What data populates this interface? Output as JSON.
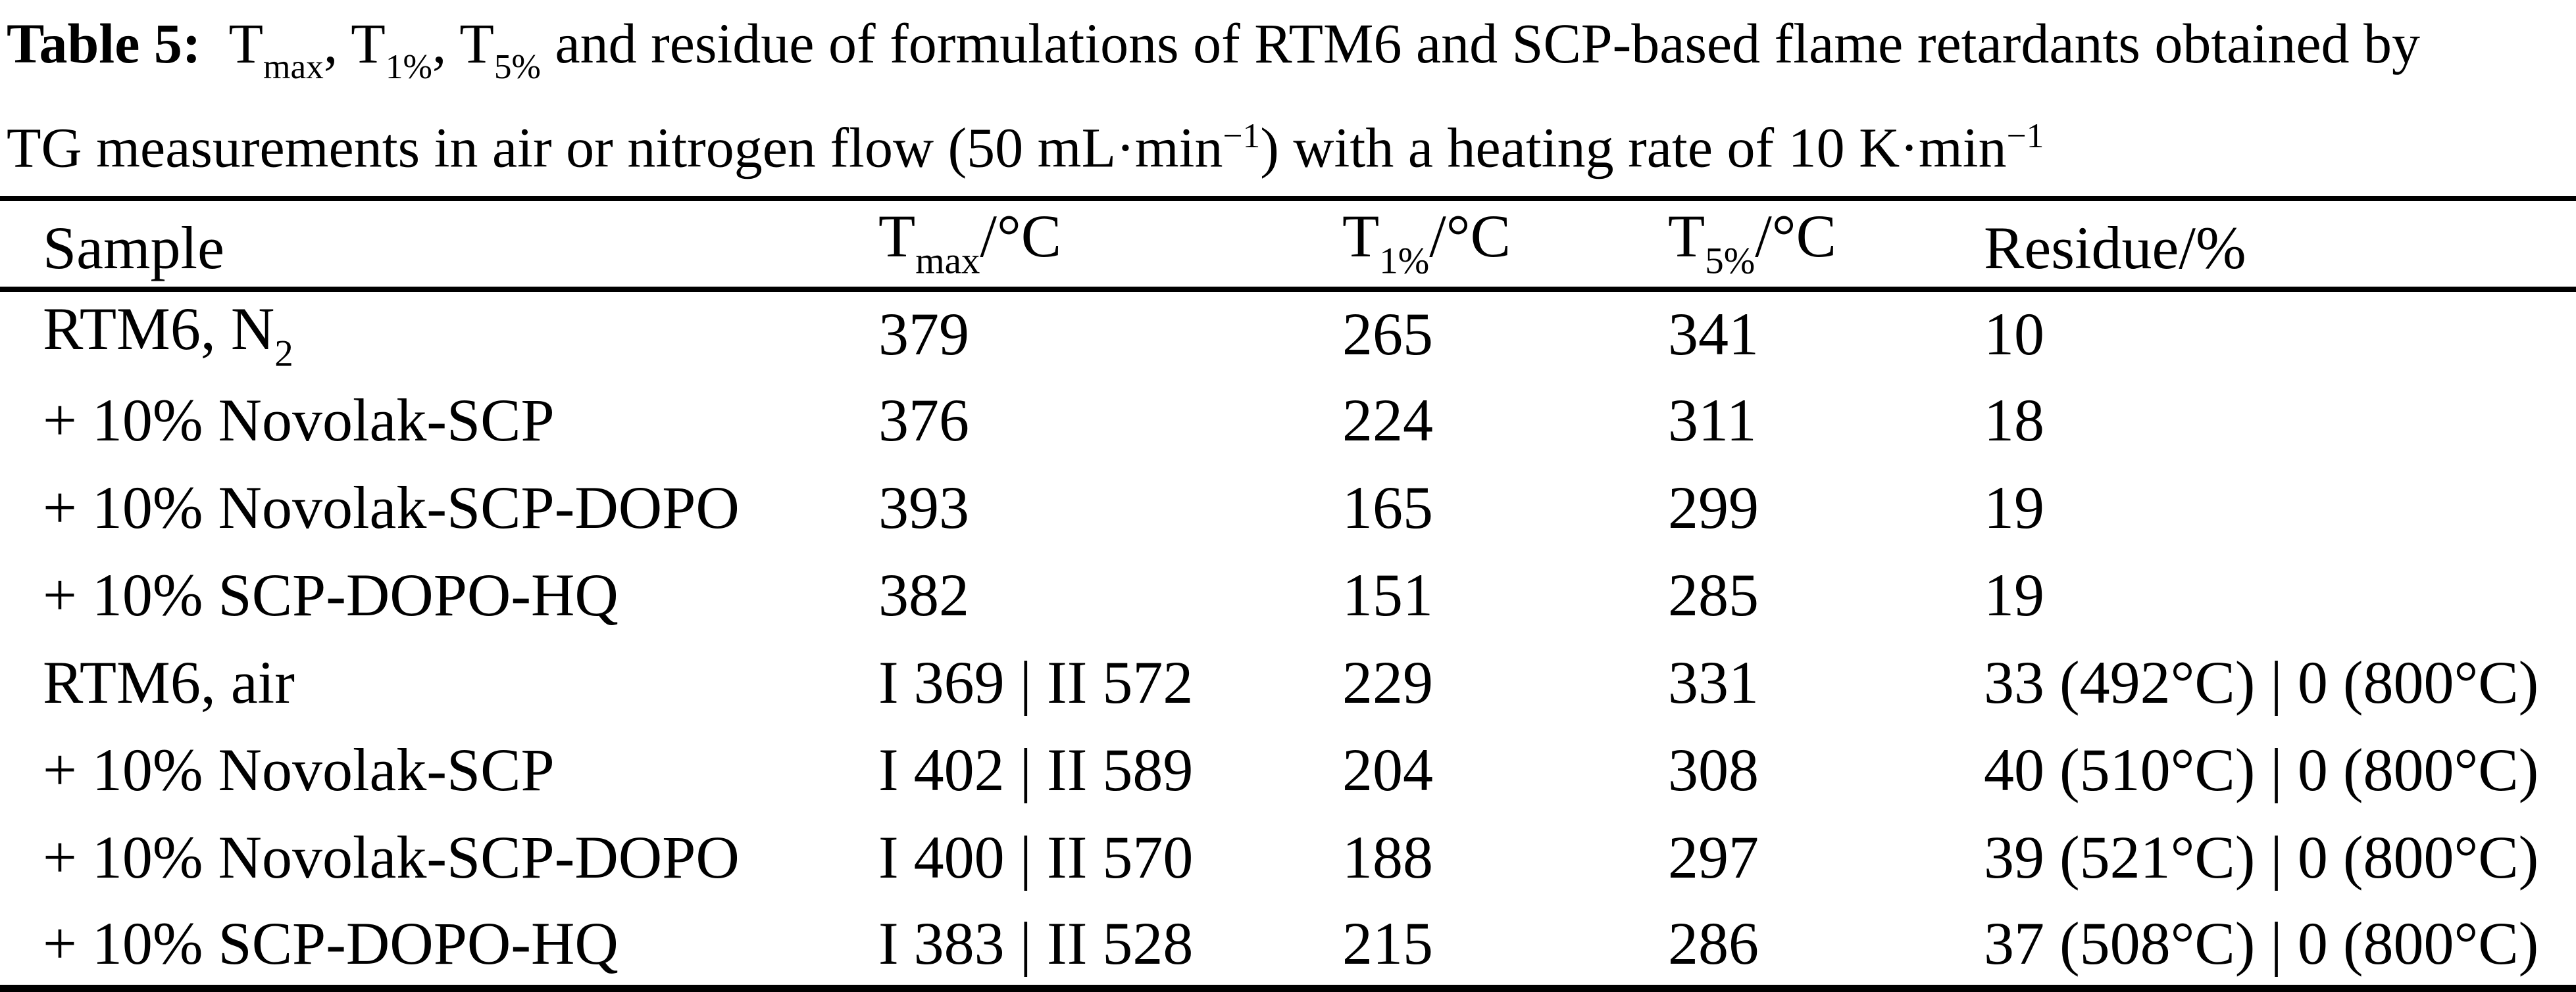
{
  "colors": {
    "text": "#000000",
    "background": "#ffffff",
    "rule": "#000000"
  },
  "caption": {
    "line1_segments": [
      {
        "t": "Table 5:",
        "b": true
      },
      {
        "t": "T"
      },
      {
        "t": "max",
        "sub": true
      },
      {
        "t": ", T"
      },
      {
        "t": "1%",
        "sub": true
      },
      {
        "t": ", T"
      },
      {
        "t": "5%",
        "sub": true
      },
      {
        "t": " and residue of formulations of RTM6 and SCP-based flame retardants obtained by"
      }
    ],
    "line2_segments": [
      {
        "t": "TG measurements in air or nitrogen flow (50 mL·min"
      },
      {
        "t": "−1",
        "sup": true
      },
      {
        "t": ") with a heating rate of 10 K·min"
      },
      {
        "t": "−1",
        "sup": true
      }
    ]
  },
  "table": {
    "columns": [
      {
        "id": "sample",
        "segments": [
          {
            "t": "Sample"
          }
        ]
      },
      {
        "id": "tmax",
        "segments": [
          {
            "t": "T"
          },
          {
            "t": "max",
            "sub": true
          },
          {
            "t": "/°C"
          }
        ]
      },
      {
        "id": "t1",
        "segments": [
          {
            "t": "T"
          },
          {
            "t": "1%",
            "sub": true
          },
          {
            "t": "/°C"
          }
        ]
      },
      {
        "id": "t5",
        "segments": [
          {
            "t": "T"
          },
          {
            "t": "5%",
            "sub": true
          },
          {
            "t": "/°C"
          }
        ]
      },
      {
        "id": "residue",
        "segments": [
          {
            "t": "Residue/%"
          }
        ]
      }
    ],
    "rows": [
      {
        "cells": [
          [
            {
              "t": "RTM6, N"
            },
            {
              "t": "2",
              "sub": true
            }
          ],
          [
            {
              "t": "379"
            }
          ],
          [
            {
              "t": "265"
            }
          ],
          [
            {
              "t": "341"
            }
          ],
          [
            {
              "t": "10"
            }
          ]
        ]
      },
      {
        "cells": [
          [
            {
              "t": "+ 10% Novolak-SCP"
            }
          ],
          [
            {
              "t": "376"
            }
          ],
          [
            {
              "t": "224"
            }
          ],
          [
            {
              "t": "311"
            }
          ],
          [
            {
              "t": "18"
            }
          ]
        ]
      },
      {
        "cells": [
          [
            {
              "t": "+ 10% Novolak-SCP-DOPO"
            }
          ],
          [
            {
              "t": "393"
            }
          ],
          [
            {
              "t": "165"
            }
          ],
          [
            {
              "t": "299"
            }
          ],
          [
            {
              "t": "19"
            }
          ]
        ]
      },
      {
        "cells": [
          [
            {
              "t": "+ 10% SCP-DOPO-HQ"
            }
          ],
          [
            {
              "t": "382"
            }
          ],
          [
            {
              "t": "151"
            }
          ],
          [
            {
              "t": "285"
            }
          ],
          [
            {
              "t": "19"
            }
          ]
        ]
      },
      {
        "cells": [
          [
            {
              "t": "RTM6, air"
            }
          ],
          [
            {
              "t": "I 369 | II 572"
            }
          ],
          [
            {
              "t": "229"
            }
          ],
          [
            {
              "t": "331"
            }
          ],
          [
            {
              "t": "33 (492°C) | 0 (800°C)"
            }
          ]
        ]
      },
      {
        "cells": [
          [
            {
              "t": "+ 10% Novolak-SCP"
            }
          ],
          [
            {
              "t": "I 402 | II 589"
            }
          ],
          [
            {
              "t": "204"
            }
          ],
          [
            {
              "t": "308"
            }
          ],
          [
            {
              "t": "40 (510°C) | 0 (800°C)"
            }
          ]
        ]
      },
      {
        "cells": [
          [
            {
              "t": "+ 10% Novolak-SCP-DOPO"
            }
          ],
          [
            {
              "t": "I 400 | II 570"
            }
          ],
          [
            {
              "t": "188"
            }
          ],
          [
            {
              "t": "297"
            }
          ],
          [
            {
              "t": "39 (521°C) | 0 (800°C)"
            }
          ]
        ]
      },
      {
        "cells": [
          [
            {
              "t": "+ 10% SCP-DOPO-HQ"
            }
          ],
          [
            {
              "t": "I 383 | II 528"
            }
          ],
          [
            {
              "t": "215"
            }
          ],
          [
            {
              "t": "286"
            }
          ],
          [
            {
              "t": "37 (508°C) | 0 (800°C)"
            }
          ]
        ]
      }
    ]
  }
}
